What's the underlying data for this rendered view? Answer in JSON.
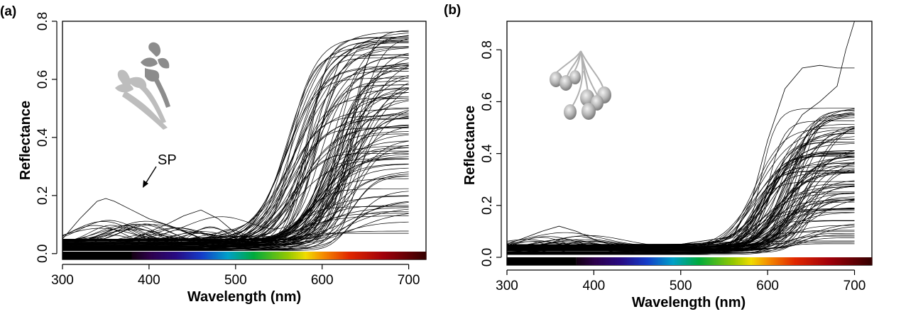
{
  "chart_data": [
    {
      "panel_label": "(a)",
      "type": "line",
      "xlabel": "Wavelength (nm)",
      "ylabel": "Reflectance",
      "xlim": [
        300,
        720
      ],
      "ylim": [
        -0.02,
        0.8
      ],
      "xticks": [
        "300",
        "400",
        "500",
        "600",
        "700"
      ],
      "yticks": [
        "0.0",
        "0.2",
        "0.4",
        "0.6",
        "0.8"
      ],
      "annotation": "SP",
      "annotation_target": {
        "x": 380,
        "y": 0.22
      },
      "illustration": "flower-illustration",
      "spectrum_bar": {
        "x_start": 380,
        "x_end": 720
      },
      "curve_family": {
        "count": 110,
        "x_start": 300,
        "x_end": 700,
        "base_min": 0.01,
        "base_max": 0.05,
        "plateau_min": 0.07,
        "plateau_max": 0.77,
        "rise_center_min": 555,
        "rise_center_max": 640,
        "rise_width_min": 10,
        "rise_width_max": 26,
        "bump_fraction": 0.4,
        "bump_height_max": 0.09,
        "bump_center_min": 330,
        "bump_center_max": 520
      },
      "highlight_series": [
        {
          "name": "SP",
          "x": [
            300,
            320,
            340,
            350,
            360,
            380,
            400,
            420,
            440,
            460,
            480,
            500,
            520,
            540,
            560,
            580,
            600,
            620,
            640,
            660,
            680,
            700
          ],
          "y": [
            0.05,
            0.12,
            0.18,
            0.19,
            0.18,
            0.15,
            0.12,
            0.1,
            0.08,
            0.07,
            0.06,
            0.06,
            0.06,
            0.07,
            0.12,
            0.28,
            0.5,
            0.66,
            0.72,
            0.74,
            0.74,
            0.74
          ]
        },
        {
          "name": "",
          "x": [
            300,
            340,
            380,
            420,
            440,
            460,
            480,
            500,
            520,
            540,
            560,
            580,
            600,
            620,
            640,
            660,
            680,
            700
          ],
          "y": [
            0.02,
            0.03,
            0.05,
            0.1,
            0.13,
            0.15,
            0.12,
            0.07,
            0.05,
            0.04,
            0.08,
            0.22,
            0.45,
            0.62,
            0.7,
            0.72,
            0.73,
            0.73
          ]
        },
        {
          "name": "",
          "x": [
            300,
            400,
            500,
            560,
            600,
            620,
            650,
            680,
            700
          ],
          "y": [
            0.01,
            0.02,
            0.03,
            0.05,
            0.07,
            0.07,
            0.07,
            0.07,
            0.07
          ]
        }
      ]
    },
    {
      "panel_label": "(b)",
      "type": "line",
      "xlabel": "Wavelength (nm)",
      "ylabel": "Reflectance",
      "xlim": [
        300,
        720
      ],
      "ylim": [
        -0.03,
        0.91
      ],
      "xticks": [
        "300",
        "400",
        "500",
        "600",
        "700"
      ],
      "yticks": [
        "0.0",
        "0.2",
        "0.4",
        "0.6",
        "0.8"
      ],
      "illustration": "fruit-cluster-illustration",
      "spectrum_bar": {
        "x_start": 380,
        "x_end": 720
      },
      "curve_family": {
        "count": 100,
        "x_start": 300,
        "x_end": 700,
        "base_min": 0.01,
        "base_max": 0.05,
        "plateau_min": 0.05,
        "plateau_max": 0.58,
        "rise_center_min": 580,
        "rise_center_max": 650,
        "rise_width_min": 9,
        "rise_width_max": 22,
        "bump_fraction": 0.25,
        "bump_height_max": 0.06,
        "bump_center_min": 320,
        "bump_center_max": 420
      },
      "highlight_series": [
        {
          "name": "",
          "x": [
            300,
            400,
            500,
            560,
            580,
            600,
            620,
            640,
            660,
            680,
            700
          ],
          "y": [
            0.03,
            0.04,
            0.05,
            0.08,
            0.2,
            0.45,
            0.65,
            0.73,
            0.74,
            0.73,
            0.73
          ]
        },
        {
          "name": "",
          "x": [
            300,
            400,
            500,
            560,
            600,
            640,
            660,
            680,
            690,
            700
          ],
          "y": [
            0.04,
            0.05,
            0.05,
            0.08,
            0.35,
            0.55,
            0.6,
            0.66,
            0.8,
            0.91
          ]
        },
        {
          "name": "",
          "x": [
            300,
            340,
            360,
            380,
            400,
            440,
            500,
            560,
            600,
            640,
            700
          ],
          "y": [
            0.05,
            0.1,
            0.12,
            0.1,
            0.07,
            0.05,
            0.05,
            0.06,
            0.2,
            0.4,
            0.5
          ]
        }
      ]
    }
  ]
}
